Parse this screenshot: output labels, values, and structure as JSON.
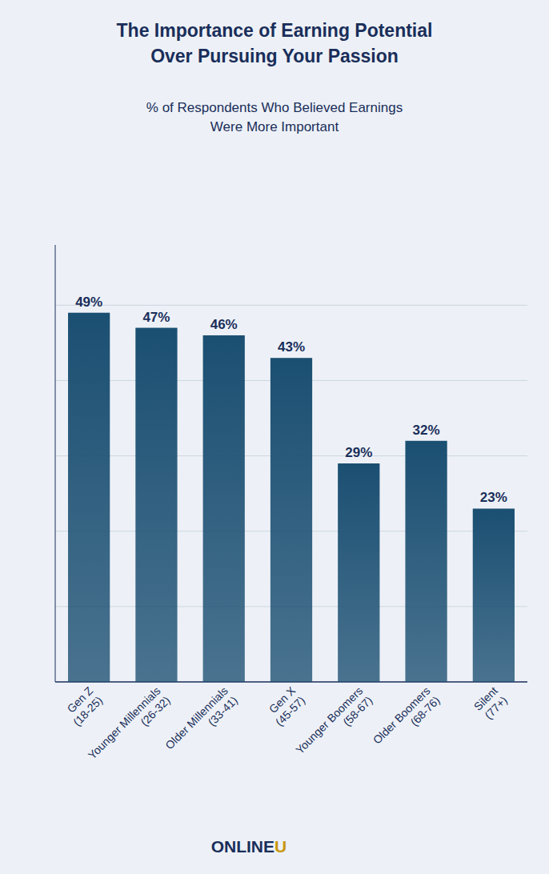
{
  "chart_data": {
    "type": "bar",
    "title": "The Importance of Earning Potential\nOver Pursuing Your Passion",
    "subtitle": "% of Respondents Who Believed Earnings\nWere More Important",
    "categories": [
      "Gen Z\n(18-25)",
      "Younger Millennials\n(26-32)",
      "Older Millennials\n(33-41)",
      "Gen X\n(45-57)",
      "Younger Boomers\n(58-67)",
      "Older Boomers\n(68-76)",
      "Silent\n(77+)"
    ],
    "values": [
      49,
      47,
      46,
      43,
      29,
      32,
      23
    ],
    "value_labels": [
      "49%",
      "47%",
      "46%",
      "43%",
      "29%",
      "32%",
      "23%"
    ],
    "color": "#1b4f72",
    "ylim": [
      0,
      58
    ],
    "yticks": [
      0,
      10,
      20,
      30,
      40,
      50
    ],
    "grid": true,
    "tick_labels": "x",
    "data_labels": true,
    "annotations": [
      {
        "text": "ONLINE",
        "color": "#1a2e5a"
      },
      {
        "text": "U",
        "color": "#c8960c"
      }
    ]
  }
}
